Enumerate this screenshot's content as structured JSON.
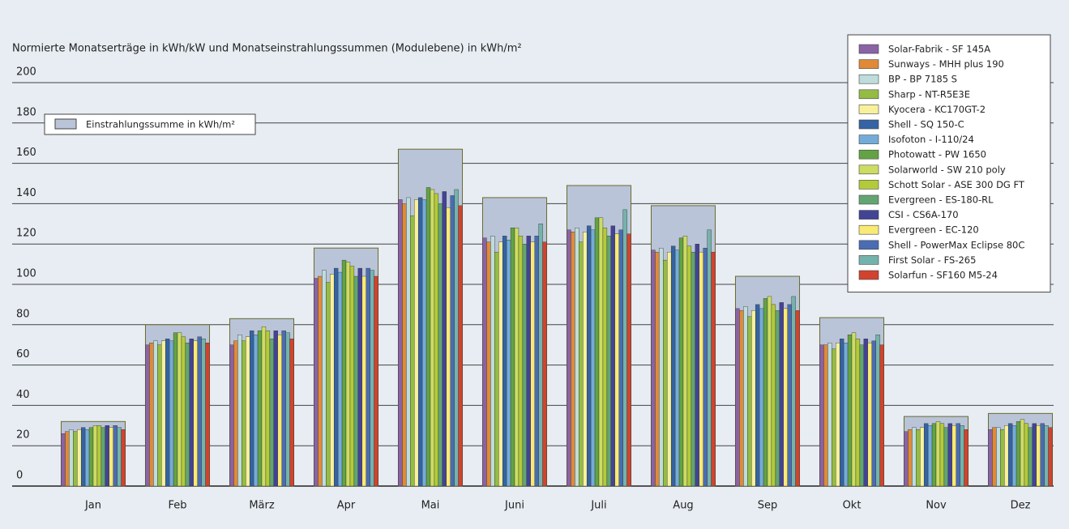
{
  "chart_data": {
    "type": "bar",
    "title": "Normierte Monatserträge in kWh/kW und Monatseinstrahlungssummen (Modulebene) in kWh/m²",
    "categories": [
      "Jan",
      "Feb",
      "März",
      "Apr",
      "Mai",
      "Juni",
      "Juli",
      "Aug",
      "Sep",
      "Okt",
      "Nov",
      "Dez"
    ],
    "ylim": [
      0,
      200
    ],
    "yticks": [
      0,
      20,
      40,
      60,
      80,
      100,
      120,
      140,
      160,
      180,
      200
    ],
    "grid": true,
    "legend": "top-right",
    "irradiation": {
      "name": "Einstrahlungssumme in kWh/m²",
      "color": "#b9c4d8",
      "values": [
        32,
        80,
        83,
        118,
        167,
        143,
        149,
        139,
        104,
        83.5,
        34.5,
        36
      ]
    },
    "series": [
      {
        "name": "Solar-Fabrik - SF 145A",
        "color": "#8a63a6",
        "values": [
          26,
          70,
          70,
          103,
          142,
          123,
          127,
          117,
          88,
          70,
          27,
          28
        ]
      },
      {
        "name": "Sunways - MHH plus 190",
        "color": "#e08a38",
        "values": [
          27,
          71,
          72,
          104,
          140,
          121,
          126,
          116,
          87,
          70,
          28,
          29
        ]
      },
      {
        "name": "BP - BP 7185 S",
        "color": "#bfdcdc",
        "values": [
          28,
          72,
          75,
          107,
          143,
          124,
          128,
          118,
          89,
          71,
          29,
          29
        ]
      },
      {
        "name": "Sharp - NT-R5E3E",
        "color": "#94bc44",
        "values": [
          27,
          70,
          72,
          101,
          134,
          116,
          121,
          112,
          84,
          68,
          28,
          28
        ]
      },
      {
        "name": "Kyocera - KC170GT-2",
        "color": "#f7f19c",
        "values": [
          28,
          72,
          74,
          105,
          142,
          121,
          126,
          116,
          87,
          71,
          29,
          30
        ]
      },
      {
        "name": "Shell - SQ 150-C",
        "color": "#3563a3",
        "values": [
          29,
          73,
          77,
          108,
          143,
          124,
          129,
          119,
          90,
          73,
          31,
          31
        ]
      },
      {
        "name": "Isofoton - I-110/24",
        "color": "#74acd9",
        "values": [
          28,
          72,
          75,
          106,
          142,
          122,
          127,
          117,
          88,
          71,
          30,
          30
        ]
      },
      {
        "name": "Photowatt - PW 1650",
        "color": "#63a343",
        "values": [
          29,
          76,
          77,
          112,
          148,
          128,
          133,
          123,
          93,
          75,
          31,
          32
        ]
      },
      {
        "name": "Solarworld - SW 210 poly",
        "color": "#cddc64",
        "values": [
          30,
          76,
          79,
          111,
          147,
          128,
          133,
          124,
          94,
          76,
          32,
          33
        ]
      },
      {
        "name": "Schott Solar - ASE 300 DG FT",
        "color": "#b3cb3a",
        "values": [
          30,
          74,
          77,
          109,
          145,
          124,
          128,
          119,
          90,
          73,
          31,
          31
        ]
      },
      {
        "name": "Evergreen - ES-180-RL",
        "color": "#63a572",
        "values": [
          29,
          71,
          73,
          104,
          140,
          120,
          124,
          116,
          87,
          70,
          29,
          29
        ]
      },
      {
        "name": "CSI - CS6A-170",
        "color": "#434396",
        "values": [
          30,
          73,
          77,
          108,
          146,
          124,
          129,
          120,
          91,
          73,
          31,
          31
        ]
      },
      {
        "name": "Evergreen - EC-120",
        "color": "#f8ea74",
        "values": [
          29,
          72,
          75,
          104,
          138,
          121,
          125,
          116,
          88,
          71,
          30,
          30
        ]
      },
      {
        "name": "Shell - PowerMax Eclipse 80C",
        "color": "#4a6cb3",
        "values": [
          30,
          74,
          77,
          108,
          144,
          124,
          127,
          118,
          90,
          72,
          31,
          31
        ]
      },
      {
        "name": "First Solar - FS-265",
        "color": "#74b3ab",
        "values": [
          29,
          73,
          76,
          107,
          147,
          130,
          137,
          127,
          94,
          75,
          30,
          30
        ]
      },
      {
        "name": "Solarfun - SF160 M5-24",
        "color": "#d1432f",
        "values": [
          28,
          71,
          73,
          104,
          139,
          121,
          125,
          116,
          87,
          70,
          28,
          29
        ]
      }
    ]
  }
}
